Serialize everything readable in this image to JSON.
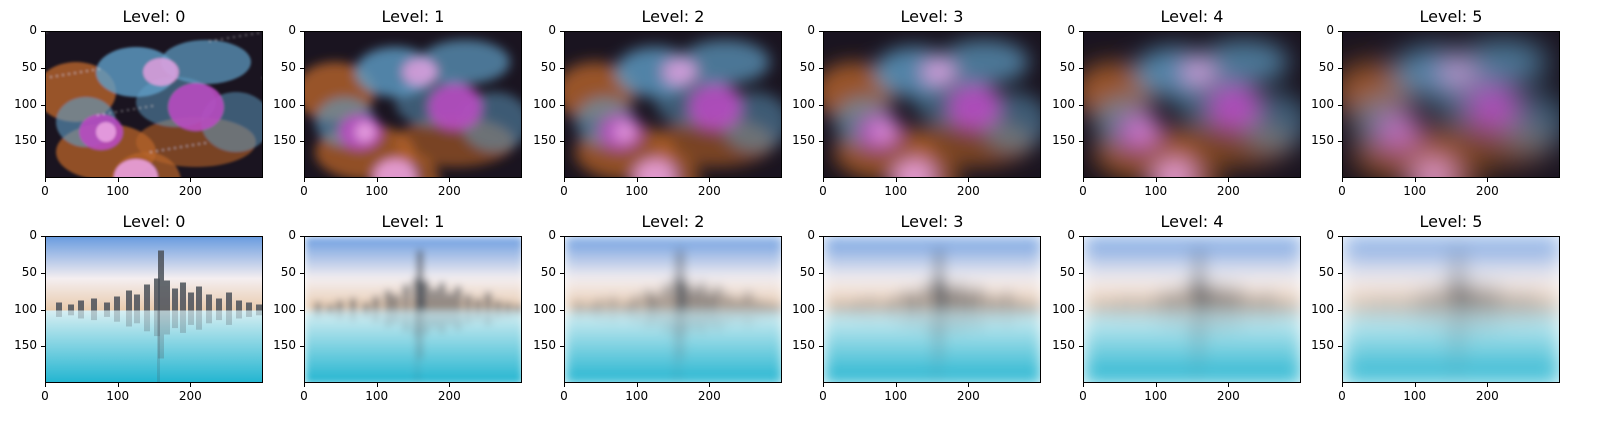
{
  "chart_data": [
    {
      "type": "image-grid",
      "row": 0,
      "image_subject": "nebula",
      "panels": [
        {
          "title": "Level: 0",
          "blur": 0
        },
        {
          "title": "Level: 1",
          "blur": 1
        },
        {
          "title": "Level: 2",
          "blur": 2
        },
        {
          "title": "Level: 3",
          "blur": 3
        },
        {
          "title": "Level: 4",
          "blur": 4
        },
        {
          "title": "Level: 5",
          "blur": 5
        }
      ],
      "xlim": [
        0,
        300
      ],
      "ylim": [
        200,
        0
      ],
      "xticks": [
        0,
        100,
        200
      ],
      "yticks": [
        0,
        50,
        100,
        150
      ],
      "xtick_labels": [
        "0",
        "100",
        "200"
      ],
      "ytick_labels": [
        "0",
        "50",
        "100",
        "150"
      ]
    },
    {
      "type": "image-grid",
      "row": 1,
      "image_subject": "city skyline reflected in water",
      "panels": [
        {
          "title": "Level: 0",
          "blur": 0
        },
        {
          "title": "Level: 1",
          "blur": 1
        },
        {
          "title": "Level: 2",
          "blur": 2
        },
        {
          "title": "Level: 3",
          "blur": 3
        },
        {
          "title": "Level: 4",
          "blur": 4
        },
        {
          "title": "Level: 5",
          "blur": 5
        }
      ],
      "xlim": [
        0,
        300
      ],
      "ylim": [
        200,
        0
      ],
      "xticks": [
        0,
        100,
        200
      ],
      "yticks": [
        0,
        50,
        100,
        150
      ],
      "xtick_labels": [
        "0",
        "100",
        "200"
      ],
      "ytick_labels": [
        "0",
        "50",
        "100",
        "150"
      ]
    }
  ],
  "colors": {
    "nebula_bg": "#1a1420",
    "nebula_orange": "#b8642a",
    "nebula_blue": "#5f9fc8",
    "nebula_magenta": "#b84ac0",
    "nebula_pink": "#e8a0e0",
    "sky_top": "#6a9ce0",
    "sky_mid": "#f4eef0",
    "horizon": "#e8c8a8",
    "city": "#4a5058",
    "water_top": "#d8eef2",
    "water_bottom": "#1fb4d0"
  }
}
